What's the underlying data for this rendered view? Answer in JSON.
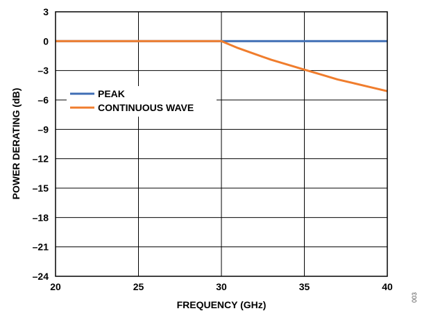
{
  "chart_data": {
    "type": "line",
    "xlabel": "FREQUENCY (GHz)",
    "ylabel": "POWER DERATING (dB)",
    "xlim": [
      20,
      40
    ],
    "ylim": [
      -24,
      3
    ],
    "x_ticks": [
      "20",
      "25",
      "30",
      "35",
      "40"
    ],
    "y_ticks": [
      "3",
      "0",
      "–3",
      "–6",
      "–9",
      "–12",
      "–15",
      "–18",
      "–21",
      "–24"
    ],
    "x_tick_values": [
      20,
      25,
      30,
      35,
      40
    ],
    "y_tick_values": [
      3,
      0,
      -3,
      -6,
      -9,
      -12,
      -15,
      -18,
      -21,
      -24
    ],
    "grid": true,
    "legend_position": "left",
    "series": [
      {
        "name": "PEAK",
        "color": "#3f6eb4",
        "x": [
          20,
          25,
          30,
          35,
          40
        ],
        "y": [
          0,
          0,
          0,
          0,
          0
        ]
      },
      {
        "name": "CONTINUOUS WAVE",
        "color": "#f07d2d",
        "x": [
          20,
          25,
          30,
          31,
          32,
          33,
          34,
          35,
          36,
          37,
          38,
          39,
          40
        ],
        "y": [
          0,
          0,
          0,
          -0.7,
          -1.3,
          -1.9,
          -2.4,
          -2.9,
          -3.4,
          -3.9,
          -4.3,
          -4.7,
          -5.1
        ]
      }
    ]
  },
  "side_label": "003"
}
